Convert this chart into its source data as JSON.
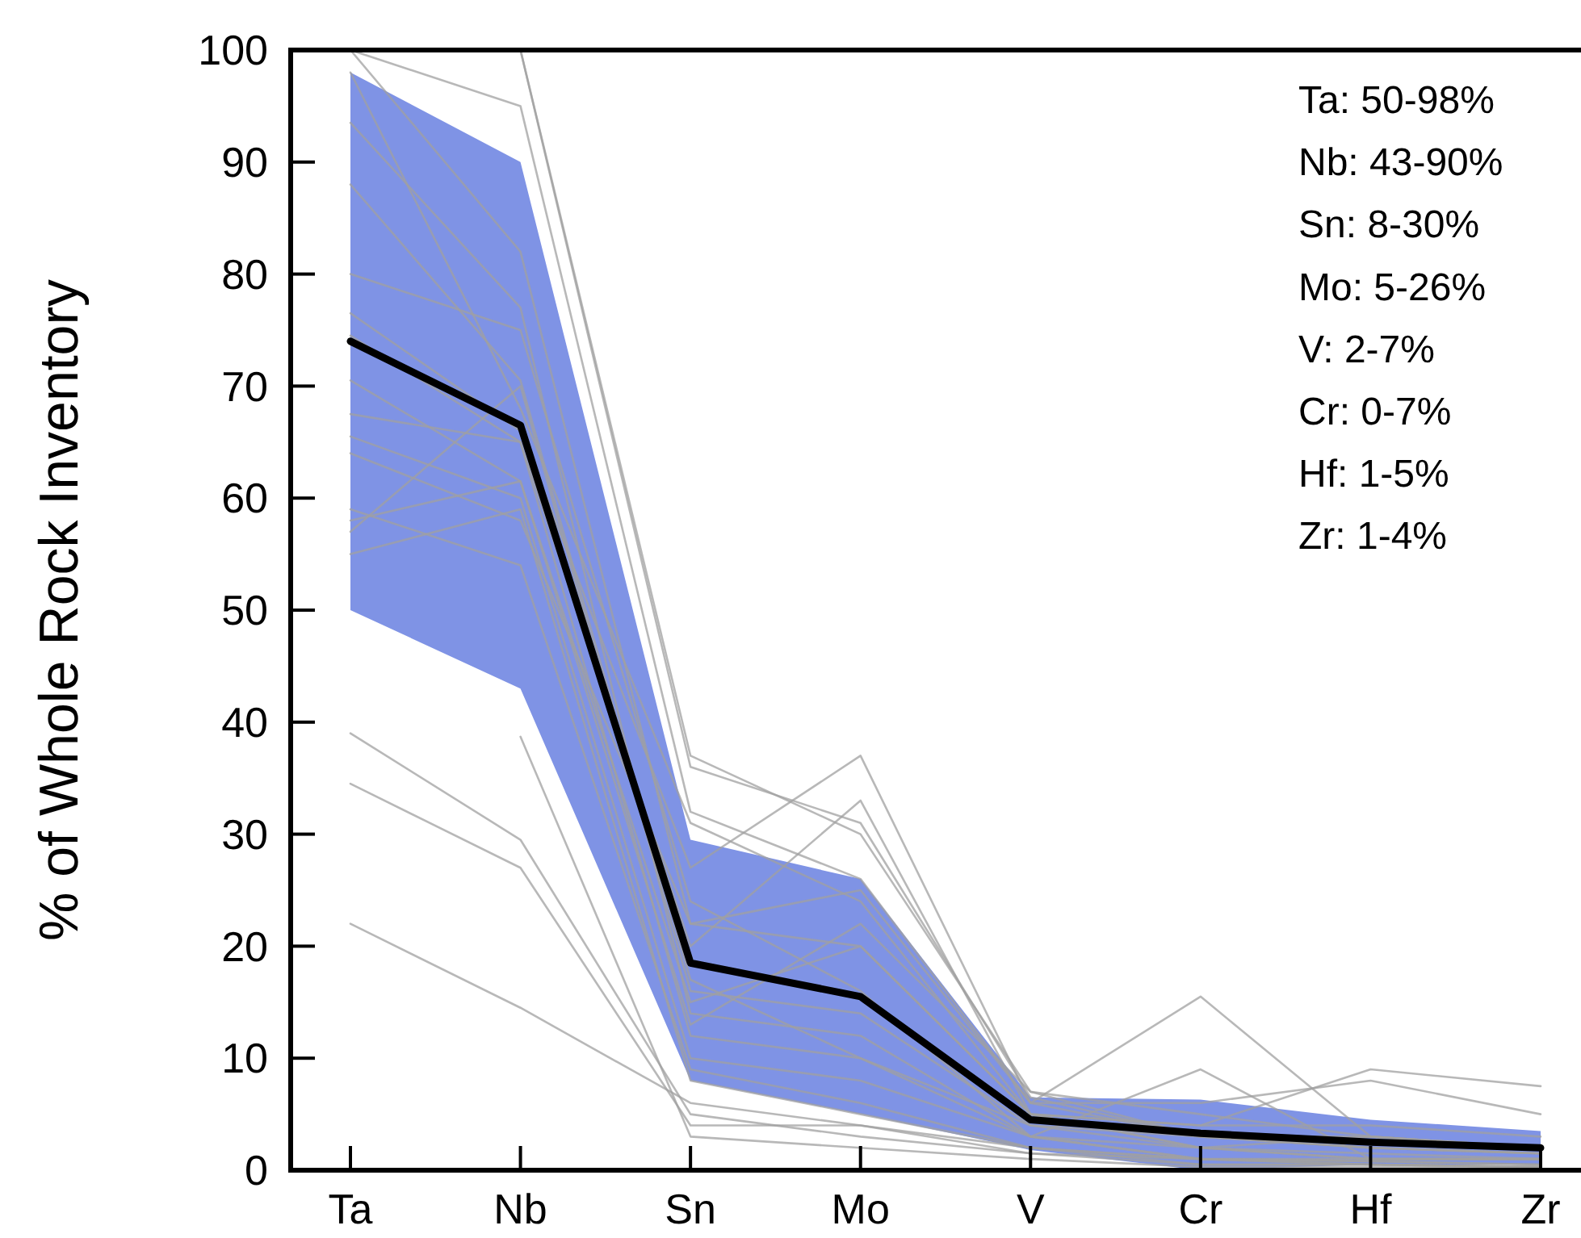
{
  "chart_data": {
    "type": "line",
    "ylabel": "% of Whole Rock Inventory",
    "categories": [
      "Ta",
      "Nb",
      "Sn",
      "Mo",
      "V",
      "Cr",
      "Hf",
      "Zr"
    ],
    "ylim": [
      0,
      100
    ],
    "yticks": [
      0,
      10,
      20,
      30,
      40,
      50,
      60,
      70,
      80,
      90,
      100
    ],
    "annotations": [
      "Ta: 50-98%",
      "Nb: 43-90%",
      "Sn: 8-30%",
      "Mo: 5-26%",
      "V: 2-7%",
      "Cr: 0-7%",
      "Hf: 1-5%",
      "Zr: 1-4%"
    ],
    "series": [
      {
        "color": "#a0a0a0",
        "values": [
          100,
          95,
          32,
          26,
          6,
          3,
          2,
          1.5
        ]
      },
      {
        "color": "#a0a0a0",
        "values": [
          100,
          82,
          22,
          20,
          5,
          2,
          1,
          1
        ]
      },
      {
        "color": "#a0a0a0",
        "values": [
          93.5,
          77,
          14,
          12,
          3,
          1,
          0.8,
          0.5
        ]
      },
      {
        "color": "#a0a0a0",
        "values": [
          88,
          70.5,
          17,
          10,
          3,
          9,
          1,
          1
        ]
      },
      {
        "color": "#a0a0a0",
        "values": [
          76.5,
          66,
          27,
          37,
          6,
          15.5,
          3,
          2
        ]
      },
      {
        "color": "#a0a0a0",
        "values": [
          74.5,
          65,
          20,
          33,
          5,
          4,
          9,
          7.5
        ]
      },
      {
        "color": "#a0a0a0",
        "values": [
          70.5,
          61.5,
          13,
          22,
          7,
          5,
          3,
          2
        ]
      },
      {
        "color": "#a0a0a0",
        "values": [
          67.5,
          65,
          12,
          10,
          4,
          2,
          3,
          2
        ]
      },
      {
        "color": "#a0a0a0",
        "values": [
          65.5,
          60,
          10,
          8,
          3,
          1,
          1,
          1
        ]
      },
      {
        "color": "#a0a0a0",
        "values": [
          64,
          58,
          22,
          25,
          6,
          6,
          8,
          5
        ]
      },
      {
        "color": "#a0a0a0",
        "values": [
          59,
          54,
          9,
          6,
          2,
          0.5,
          0.5,
          0.3
        ]
      },
      {
        "color": "#a0a0a0",
        "values": [
          58,
          61.5,
          15,
          20,
          5,
          2,
          1,
          1
        ]
      },
      {
        "color": "#a0a0a0",
        "values": [
          57,
          70,
          16,
          14,
          4,
          3,
          2,
          1.5
        ]
      },
      {
        "color": "#a0a0a0",
        "values": [
          55,
          59,
          8,
          5,
          2,
          1,
          0.5,
          0.3
        ]
      },
      {
        "color": "#a0a0a0",
        "values": [
          39,
          29.5,
          5,
          3,
          1.5,
          1,
          0.5,
          0.3
        ]
      },
      {
        "color": "#a0a0a0",
        "values": [
          34.5,
          27,
          4,
          4,
          1.5,
          0.5,
          0.5,
          0.3
        ]
      },
      {
        "color": "#a0a0a0",
        "values": [
          22,
          14.5,
          6,
          4,
          2,
          1,
          0.8,
          0.5
        ]
      },
      {
        "color": "#a0a0a0",
        "values": [
          null,
          38.7,
          3,
          2,
          1,
          0.3,
          0.3,
          0.2
        ]
      },
      {
        "color": "#a0a0a0",
        "values": [
          null,
          100,
          37,
          30,
          7,
          3,
          2,
          1.5
        ]
      },
      {
        "color": "#a0a0a0",
        "values": [
          null,
          100,
          36,
          31,
          6.5,
          3,
          3,
          2
        ]
      },
      {
        "color": "#a0a0a0",
        "values": [
          98,
          68,
          31,
          24,
          5,
          4,
          4,
          3
        ]
      },
      {
        "color": "#a0a0a0",
        "values": [
          80,
          75,
          24,
          16,
          3,
          2,
          1.5,
          1
        ]
      },
      {
        "color": "#000000",
        "values": [
          74,
          66.5,
          18.5,
          15.5,
          4.5,
          3.3,
          2.5,
          2
        ],
        "lower": [
          50,
          43,
          8,
          5,
          1.8,
          0,
          0.5,
          0.5
        ],
        "upper": [
          98,
          90,
          29.5,
          26,
          6.5,
          6.3,
          4.5,
          3.5
        ]
      }
    ]
  }
}
